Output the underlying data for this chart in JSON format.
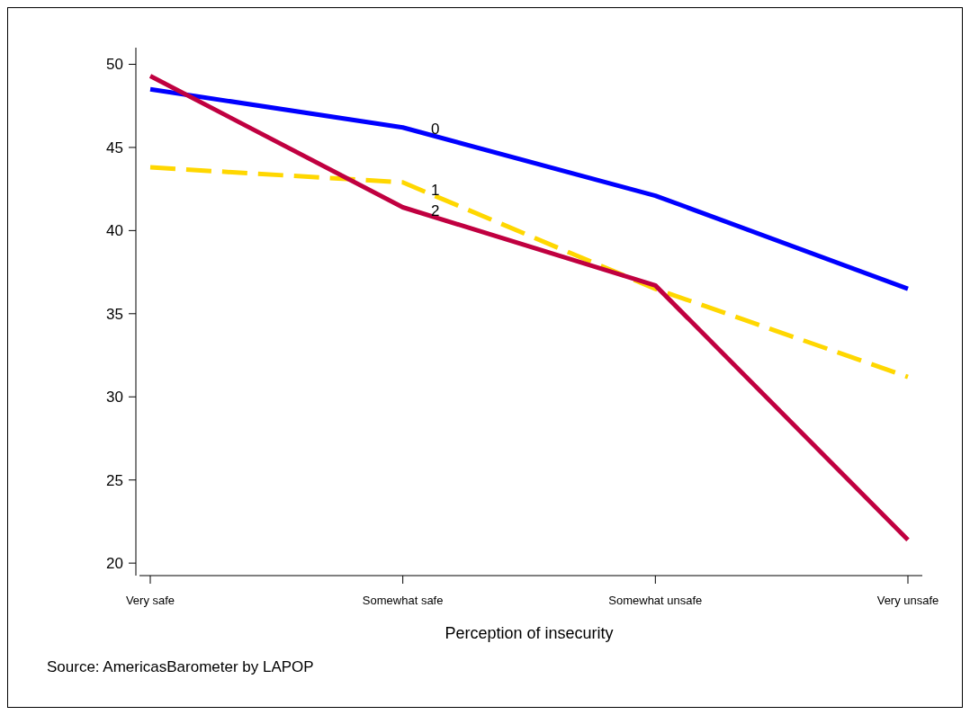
{
  "chart_data": {
    "type": "line",
    "xlabel": "Perception of insecurity",
    "categories": [
      "Very safe",
      "Somewhat safe",
      "Somewhat unsafe",
      "Very unsafe"
    ],
    "series": [
      {
        "name": "0",
        "color": "#0000ff",
        "values": [
          48.5,
          46.2,
          42.1,
          36.5
        ],
        "line_style": "solid"
      },
      {
        "name": "1",
        "color": "#ffd700",
        "values": [
          43.8,
          42.9,
          36.5,
          31.2
        ],
        "line_style": "dashed"
      },
      {
        "name": "2",
        "color": "#c00040",
        "values": [
          49.3,
          41.4,
          36.7,
          21.4
        ],
        "line_style": "solid"
      }
    ],
    "ylim": [
      19.25,
      51
    ],
    "yticks": [
      20,
      25,
      30,
      35,
      40,
      45,
      50
    ],
    "grid": false,
    "legend": false,
    "marker": "none",
    "annotations": [
      "Source: AmericasBarometer by LAPOP"
    ]
  }
}
